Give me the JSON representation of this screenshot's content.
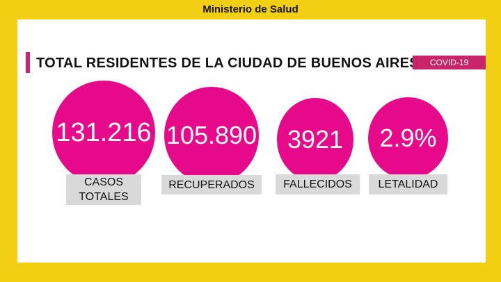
{
  "header": {
    "title": "Ministerio de Salud"
  },
  "section": {
    "title": "TOTAL RESIDENTES DE LA CIUDAD DE BUENOS AIRES",
    "tag": "COVID-19"
  },
  "stats": [
    {
      "value": "131.216",
      "label_line1": "CASOS",
      "label_line2": "TOTALES"
    },
    {
      "value": "105.890",
      "label_line1": "RECUPERADOS"
    },
    {
      "value": "3921",
      "label_line1": "FALLECIDOS"
    },
    {
      "value": "2.9%",
      "label_line1": "LETALIDAD"
    }
  ],
  "colors": {
    "background": "#f2cf12",
    "accent": "#c8246a",
    "circle": "#e6098a",
    "label_bg": "#d9d9d9"
  }
}
